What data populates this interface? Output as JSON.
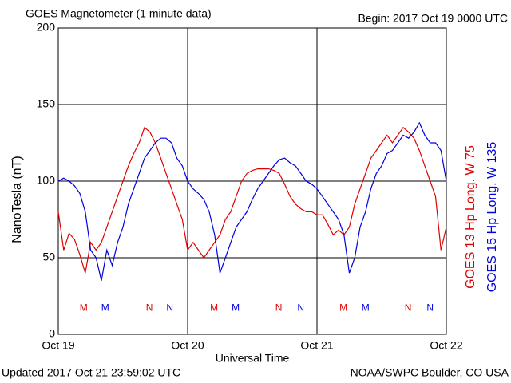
{
  "chart_data": {
    "type": "line",
    "title": "GOES Magnetometer (1 minute data)",
    "subtitle": "Begin:  2017 Oct 19 0000 UTC",
    "ylabel": "NanoTesla (nT)",
    "xlabel": "Universal Time",
    "footer_left": "Updated 2017 Oct 21 23:59:02 UTC",
    "footer_right": "NOAA/SWPC Boulder, CO USA",
    "grid": true,
    "xlim": [
      0,
      72
    ],
    "xticks": [
      {
        "value": 0,
        "label": "Oct 19"
      },
      {
        "value": 24,
        "label": "Oct 20"
      },
      {
        "value": 48,
        "label": "Oct 21"
      },
      {
        "value": 72,
        "label": "Oct 22"
      }
    ],
    "ylim": [
      0,
      200
    ],
    "yticks": [
      0,
      50,
      100,
      150,
      200
    ],
    "x": [
      0,
      1,
      2,
      3,
      4,
      5,
      6,
      7,
      8,
      9,
      10,
      11,
      12,
      13,
      14,
      15,
      16,
      17,
      18,
      19,
      20,
      21,
      22,
      23,
      24,
      25,
      26,
      27,
      28,
      29,
      30,
      31,
      32,
      33,
      34,
      35,
      36,
      37,
      38,
      39,
      40,
      41,
      42,
      43,
      44,
      45,
      46,
      47,
      48,
      49,
      50,
      51,
      52,
      53,
      54,
      55,
      56,
      57,
      58,
      59,
      60,
      61,
      62,
      63,
      64,
      65,
      66,
      67,
      68,
      69,
      70,
      71,
      72
    ],
    "series": [
      {
        "name": "GOES 13 Hp  Long. W 75",
        "color": "#e00000",
        "values": [
          80,
          55,
          66,
          62,
          52,
          40,
          60,
          55,
          60,
          70,
          80,
          90,
          100,
          110,
          118,
          125,
          135,
          132,
          125,
          115,
          105,
          95,
          85,
          75,
          55,
          60,
          55,
          50,
          55,
          60,
          65,
          75,
          80,
          90,
          100,
          105,
          107,
          108,
          108,
          108,
          107,
          105,
          98,
          90,
          85,
          82,
          80,
          80,
          78,
          78,
          72,
          65,
          68,
          65,
          70,
          85,
          95,
          105,
          115,
          120,
          125,
          130,
          125,
          130,
          135,
          132,
          128,
          120,
          110,
          100,
          90,
          55,
          70
        ]
      },
      {
        "name": "GOES 15 Hp  Long. W 135",
        "color": "#0000e0",
        "values": [
          100,
          102,
          100,
          97,
          92,
          80,
          55,
          50,
          35,
          55,
          45,
          60,
          70,
          85,
          95,
          105,
          115,
          120,
          125,
          128,
          128,
          125,
          115,
          110,
          100,
          95,
          92,
          88,
          80,
          65,
          40,
          50,
          60,
          70,
          75,
          80,
          88,
          95,
          100,
          105,
          110,
          114,
          115,
          112,
          110,
          105,
          100,
          98,
          95,
          90,
          85,
          80,
          75,
          65,
          40,
          50,
          70,
          80,
          95,
          105,
          110,
          118,
          120,
          125,
          130,
          128,
          132,
          138,
          130,
          125,
          125,
          120,
          100
        ]
      }
    ],
    "markers": [
      {
        "x": 4.7,
        "y": 17,
        "label": "M",
        "color": "#e00000"
      },
      {
        "x": 8.7,
        "y": 17,
        "label": "M",
        "color": "#0000e0"
      },
      {
        "x": 16.9,
        "y": 17,
        "label": "N",
        "color": "#e00000"
      },
      {
        "x": 20.7,
        "y": 17,
        "label": "N",
        "color": "#0000e0"
      },
      {
        "x": 28.9,
        "y": 17,
        "label": "M",
        "color": "#e00000"
      },
      {
        "x": 32.9,
        "y": 17,
        "label": "M",
        "color": "#0000e0"
      },
      {
        "x": 40.9,
        "y": 17,
        "label": "N",
        "color": "#e00000"
      },
      {
        "x": 45,
        "y": 17,
        "label": "N",
        "color": "#0000e0"
      },
      {
        "x": 52.9,
        "y": 17,
        "label": "M",
        "color": "#e00000"
      },
      {
        "x": 57,
        "y": 17,
        "label": "M",
        "color": "#0000e0"
      },
      {
        "x": 64.9,
        "y": 17,
        "label": "N",
        "color": "#e00000"
      },
      {
        "x": 69,
        "y": 17,
        "label": "N",
        "color": "#0000e0"
      }
    ]
  }
}
